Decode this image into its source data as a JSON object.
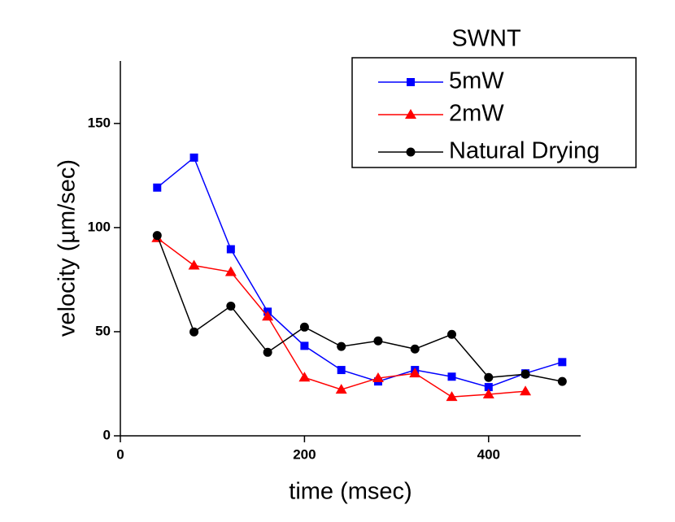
{
  "chart_data": {
    "type": "line",
    "xlabel": "time (msec)",
    "ylabel": "velocity (µm/sec)",
    "legend_title": "SWNT",
    "legend": "upper right",
    "x": [
      40,
      80,
      120,
      160,
      200,
      240,
      280,
      320,
      360,
      400,
      440,
      480
    ],
    "series": [
      {
        "name": "5mW",
        "color": "#0000ff",
        "marker": "square",
        "values": [
          119.2,
          133.6,
          89.6,
          59.6,
          43.2,
          31.6,
          26.1,
          31.6,
          28.4,
          23.4,
          30,
          35.4
        ]
      },
      {
        "name": "2mW",
        "color": "#ff0000",
        "marker": "triangle",
        "values": [
          95,
          81.8,
          78.7,
          57.3,
          28,
          22.2,
          27.7,
          30,
          18.7,
          19.9,
          21.4,
          null
        ]
      },
      {
        "name": "Natural Drying",
        "color": "#000000",
        "marker": "circle",
        "values": [
          96.2,
          49.9,
          62.3,
          40.1,
          52.2,
          42.9,
          45.6,
          41.7,
          48.7,
          28,
          29.6,
          26.1
        ]
      }
    ],
    "xlim": [
      0,
      500
    ],
    "xticks": [
      0,
      200,
      400
    ],
    "ylim": [
      0,
      180
    ],
    "yticks": [
      0,
      50,
      100,
      150
    ]
  }
}
